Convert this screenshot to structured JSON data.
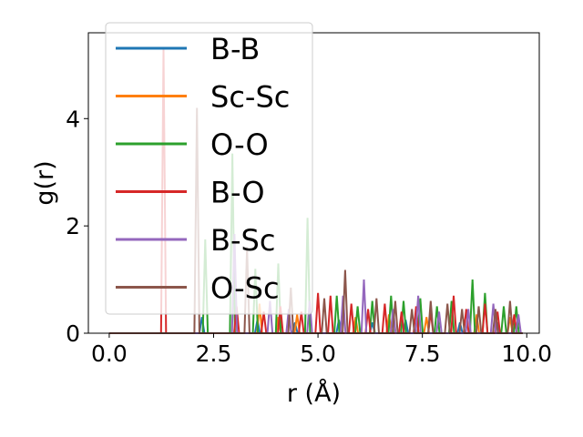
{
  "chart_data": {
    "type": "line",
    "xlabel": "r (Å)",
    "ylabel": "g(r)",
    "xlim": [
      -0.5,
      10.3
    ],
    "ylim": [
      0,
      5.6
    ],
    "x_ticks": [
      0.0,
      2.5,
      5.0,
      7.5,
      10.0
    ],
    "x_tick_labels": [
      "0.0",
      "2.5",
      "5.0",
      "7.5",
      "10.0"
    ],
    "y_ticks": [
      0,
      2,
      4
    ],
    "y_tick_labels": [
      "0",
      "2",
      "4"
    ],
    "legend_position": "upper-left",
    "grid": false,
    "series": [
      {
        "name": "B-B",
        "color": "#1f77b4",
        "peaks": [
          [
            2.22,
            0.3
          ],
          [
            3.55,
            0.25
          ],
          [
            4.45,
            0.2
          ],
          [
            5.5,
            0.25
          ],
          [
            6.3,
            0.2
          ],
          [
            7.1,
            0.25
          ],
          [
            8.4,
            0.2
          ],
          [
            9.3,
            0.2
          ]
        ]
      },
      {
        "name": "Sc-Sc",
        "color": "#ff7f0e",
        "peaks": [
          [
            3.6,
            0.55
          ],
          [
            4.05,
            0.3
          ],
          [
            4.5,
            0.35
          ],
          [
            5.9,
            0.3
          ],
          [
            6.7,
            0.35
          ],
          [
            7.6,
            0.3
          ],
          [
            8.8,
            0.35
          ],
          [
            9.6,
            0.3
          ]
        ]
      },
      {
        "name": "O-O",
        "color": "#2ca02c",
        "peaks": [
          [
            2.3,
            1.75
          ],
          [
            2.95,
            3.35
          ],
          [
            3.5,
            1.2
          ],
          [
            4.05,
            1.3
          ],
          [
            4.75,
            2.15
          ],
          [
            5.45,
            0.7
          ],
          [
            5.95,
            0.5
          ],
          [
            6.3,
            0.6
          ],
          [
            6.75,
            0.7
          ],
          [
            7.05,
            0.6
          ],
          [
            7.45,
            0.65
          ],
          [
            7.85,
            0.5
          ],
          [
            8.2,
            0.6
          ],
          [
            8.7,
            1.0
          ],
          [
            9.0,
            0.75
          ],
          [
            9.45,
            0.5
          ],
          [
            9.75,
            0.5
          ]
        ]
      },
      {
        "name": "B-O",
        "color": "#d62728",
        "peaks": [
          [
            1.3,
            5.3
          ],
          [
            3.05,
            0.5
          ],
          [
            3.7,
            0.4
          ],
          [
            4.1,
            0.5
          ],
          [
            4.6,
            0.4
          ],
          [
            5.0,
            0.75
          ],
          [
            5.3,
            0.7
          ],
          [
            5.8,
            0.55
          ],
          [
            6.2,
            0.45
          ],
          [
            6.6,
            0.55
          ],
          [
            7.0,
            0.4
          ],
          [
            7.35,
            0.5
          ],
          [
            7.7,
            0.4
          ],
          [
            8.25,
            0.7
          ],
          [
            8.55,
            0.45
          ],
          [
            9.0,
            0.55
          ],
          [
            9.3,
            0.4
          ],
          [
            9.7,
            0.35
          ]
        ]
      },
      {
        "name": "B-Sc",
        "color": "#9467bd",
        "peaks": [
          [
            3.0,
            1.85
          ],
          [
            3.85,
            0.6
          ],
          [
            4.3,
            0.45
          ],
          [
            4.8,
            0.6
          ],
          [
            5.6,
            0.7
          ],
          [
            6.1,
            1.0
          ],
          [
            6.8,
            0.45
          ],
          [
            7.4,
            0.7
          ],
          [
            7.9,
            0.4
          ],
          [
            8.6,
            0.45
          ],
          [
            9.2,
            0.55
          ],
          [
            9.8,
            0.35
          ]
        ]
      },
      {
        "name": "O-Sc",
        "color": "#8c564b",
        "peaks": [
          [
            2.1,
            4.2
          ],
          [
            3.3,
            1.6
          ],
          [
            4.35,
            0.85
          ],
          [
            5.15,
            0.65
          ],
          [
            5.65,
            1.18
          ],
          [
            6.4,
            0.65
          ],
          [
            6.85,
            0.6
          ],
          [
            7.25,
            0.45
          ],
          [
            7.7,
            0.6
          ],
          [
            8.1,
            0.55
          ],
          [
            8.45,
            0.45
          ],
          [
            8.85,
            0.5
          ],
          [
            9.25,
            0.45
          ],
          [
            9.6,
            0.6
          ]
        ]
      }
    ]
  }
}
